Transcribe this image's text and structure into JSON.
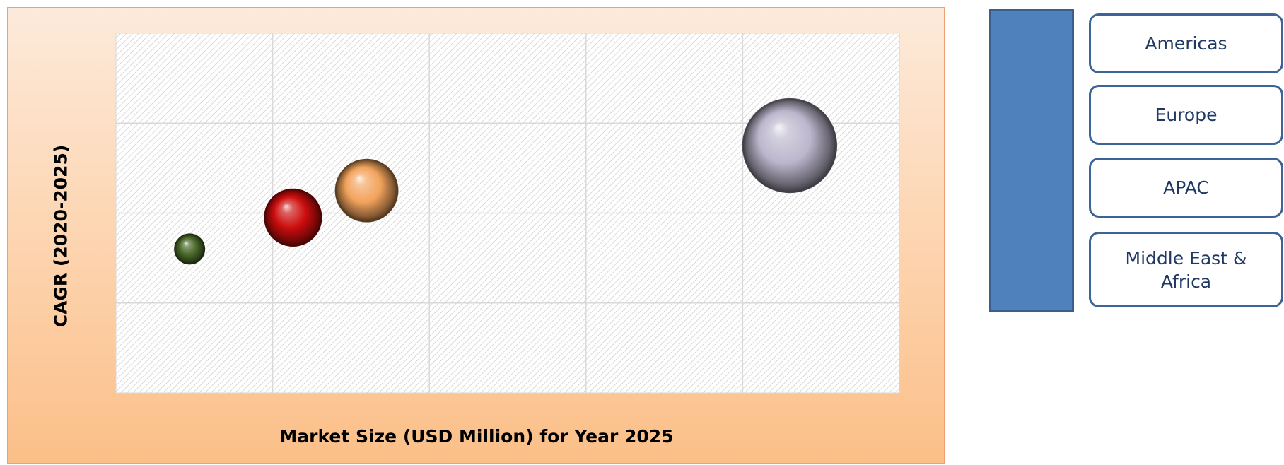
{
  "chart_data": {
    "type": "bubble",
    "title": "",
    "xlabel": "Market Size (USD Million) for Year 2025",
    "ylabel": "CAGR (2020-2025)",
    "xlim": [
      0,
      5
    ],
    "ylim": [
      0,
      4
    ],
    "grid": true,
    "tick_labels_shown": false,
    "series": [
      {
        "name": "Middle East & Africa",
        "x": 0.47,
        "y": 1.6,
        "size": 0.34,
        "color": "#4a6a2a"
      },
      {
        "name": "Europe",
        "x": 1.6,
        "y": 2.25,
        "size": 0.7,
        "color": "#f2a35c"
      },
      {
        "name": "APAC",
        "x": 1.13,
        "y": 1.95,
        "size": 0.64,
        "color": "#cc0d0d"
      },
      {
        "name": "Americas",
        "x": 4.3,
        "y": 2.75,
        "size": 1.05,
        "color": "#bcb6cc"
      }
    ]
  },
  "legend": {
    "items": [
      {
        "label": "Americas"
      },
      {
        "label": "Europe"
      },
      {
        "label": "APAC"
      },
      {
        "label": "Middle East &\nAfrica"
      }
    ]
  }
}
